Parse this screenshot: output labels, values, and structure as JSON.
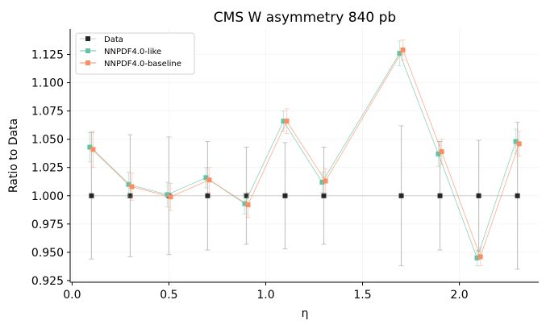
{
  "chart_data": {
    "type": "scatter",
    "title": "CMS W asymmetry 840 pb",
    "xlabel": "η",
    "ylabel": "Ratio to Data",
    "xlim": [
      -0.01,
      2.41
    ],
    "ylim": [
      0.9235,
      1.1475
    ],
    "xticks": [
      0.0,
      0.5,
      1.0,
      1.5,
      2.0
    ],
    "xtick_labels": [
      "0.0",
      "0.5",
      "1.0",
      "1.5",
      "2.0"
    ],
    "yticks": [
      0.925,
      0.95,
      0.975,
      1.0,
      1.025,
      1.05,
      1.075,
      1.1,
      1.125
    ],
    "ytick_labels": [
      "0.925",
      "0.950",
      "0.975",
      "1.000",
      "1.025",
      "1.050",
      "1.075",
      "1.100",
      "1.125"
    ],
    "legend_position": "top-left",
    "grid": true,
    "series": [
      {
        "name": "Data",
        "color": "#262626",
        "marker": "square",
        "line": false,
        "x": [
          0.1,
          0.3,
          0.5,
          0.7,
          0.9,
          1.1,
          1.3,
          1.7,
          1.9,
          2.1,
          2.3
        ],
        "y": [
          1.0,
          1.0,
          1.0,
          1.0,
          1.0,
          1.0,
          1.0,
          1.0,
          1.0,
          1.0,
          1.0
        ],
        "err": [
          0.056,
          0.054,
          0.052,
          0.048,
          0.043,
          0.047,
          0.043,
          0.062,
          0.048,
          0.049,
          0.065
        ]
      },
      {
        "name": "NNPDF4.0-like",
        "color": "#66c2a5",
        "marker": "square",
        "line": true,
        "x": [
          0.1,
          0.3,
          0.5,
          0.7,
          0.9,
          1.1,
          1.3,
          1.7,
          1.9,
          2.1,
          2.3
        ],
        "y": [
          1.043,
          1.01,
          1.001,
          1.016,
          0.993,
          1.066,
          1.012,
          1.126,
          1.037,
          0.945,
          1.048
        ],
        "err": [
          0.013,
          0.011,
          0.011,
          0.009,
          0.009,
          0.009,
          0.009,
          0.011,
          0.011,
          0.007,
          0.011
        ]
      },
      {
        "name": "NNPDF4.0-baseline",
        "color": "#fc8d62",
        "marker": "square",
        "line": true,
        "x": [
          0.1,
          0.3,
          0.5,
          0.7,
          0.9,
          1.1,
          1.3,
          1.7,
          1.9,
          2.1,
          2.3
        ],
        "y": [
          1.041,
          1.008,
          0.999,
          1.014,
          0.992,
          1.066,
          1.013,
          1.129,
          1.039,
          0.946,
          1.046
        ],
        "err": [
          0.016,
          0.012,
          0.012,
          0.011,
          0.011,
          0.011,
          0.011,
          0.009,
          0.011,
          0.008,
          0.011
        ]
      }
    ]
  }
}
